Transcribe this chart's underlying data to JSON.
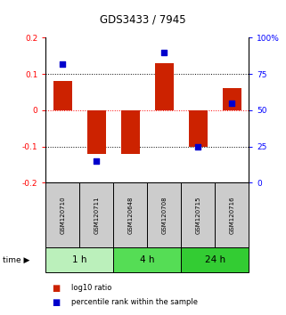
{
  "title": "GDS3433 / 7945",
  "samples": [
    "GSM120710",
    "GSM120711",
    "GSM120648",
    "GSM120708",
    "GSM120715",
    "GSM120716"
  ],
  "log10_ratio": [
    0.08,
    -0.12,
    -0.12,
    0.13,
    -0.1,
    0.06
  ],
  "percentile_rank": [
    82,
    15,
    null,
    90,
    25,
    55
  ],
  "time_groups": [
    {
      "label": "1 h",
      "start": 0,
      "end": 2,
      "color": "#bbf0bb"
    },
    {
      "label": "4 h",
      "start": 2,
      "end": 4,
      "color": "#55dd55"
    },
    {
      "label": "24 h",
      "start": 4,
      "end": 6,
      "color": "#33cc33"
    }
  ],
  "ylim_left": [
    -0.2,
    0.2
  ],
  "ylim_right": [
    0,
    100
  ],
  "bar_color": "#cc2200",
  "dot_color": "#0000cc",
  "bar_width": 0.55,
  "background_color": "#ffffff",
  "sample_box_color": "#cccccc",
  "yticks_left": [
    -0.2,
    -0.1,
    0.0,
    0.1,
    0.2
  ],
  "yticks_right": [
    0,
    25,
    50,
    75,
    100
  ],
  "ytick_labels_left": [
    "-0.2",
    "-0.1",
    "0",
    "0.1",
    "0.2"
  ],
  "ytick_labels_right": [
    "0",
    "25",
    "50",
    "75",
    "100%"
  ]
}
